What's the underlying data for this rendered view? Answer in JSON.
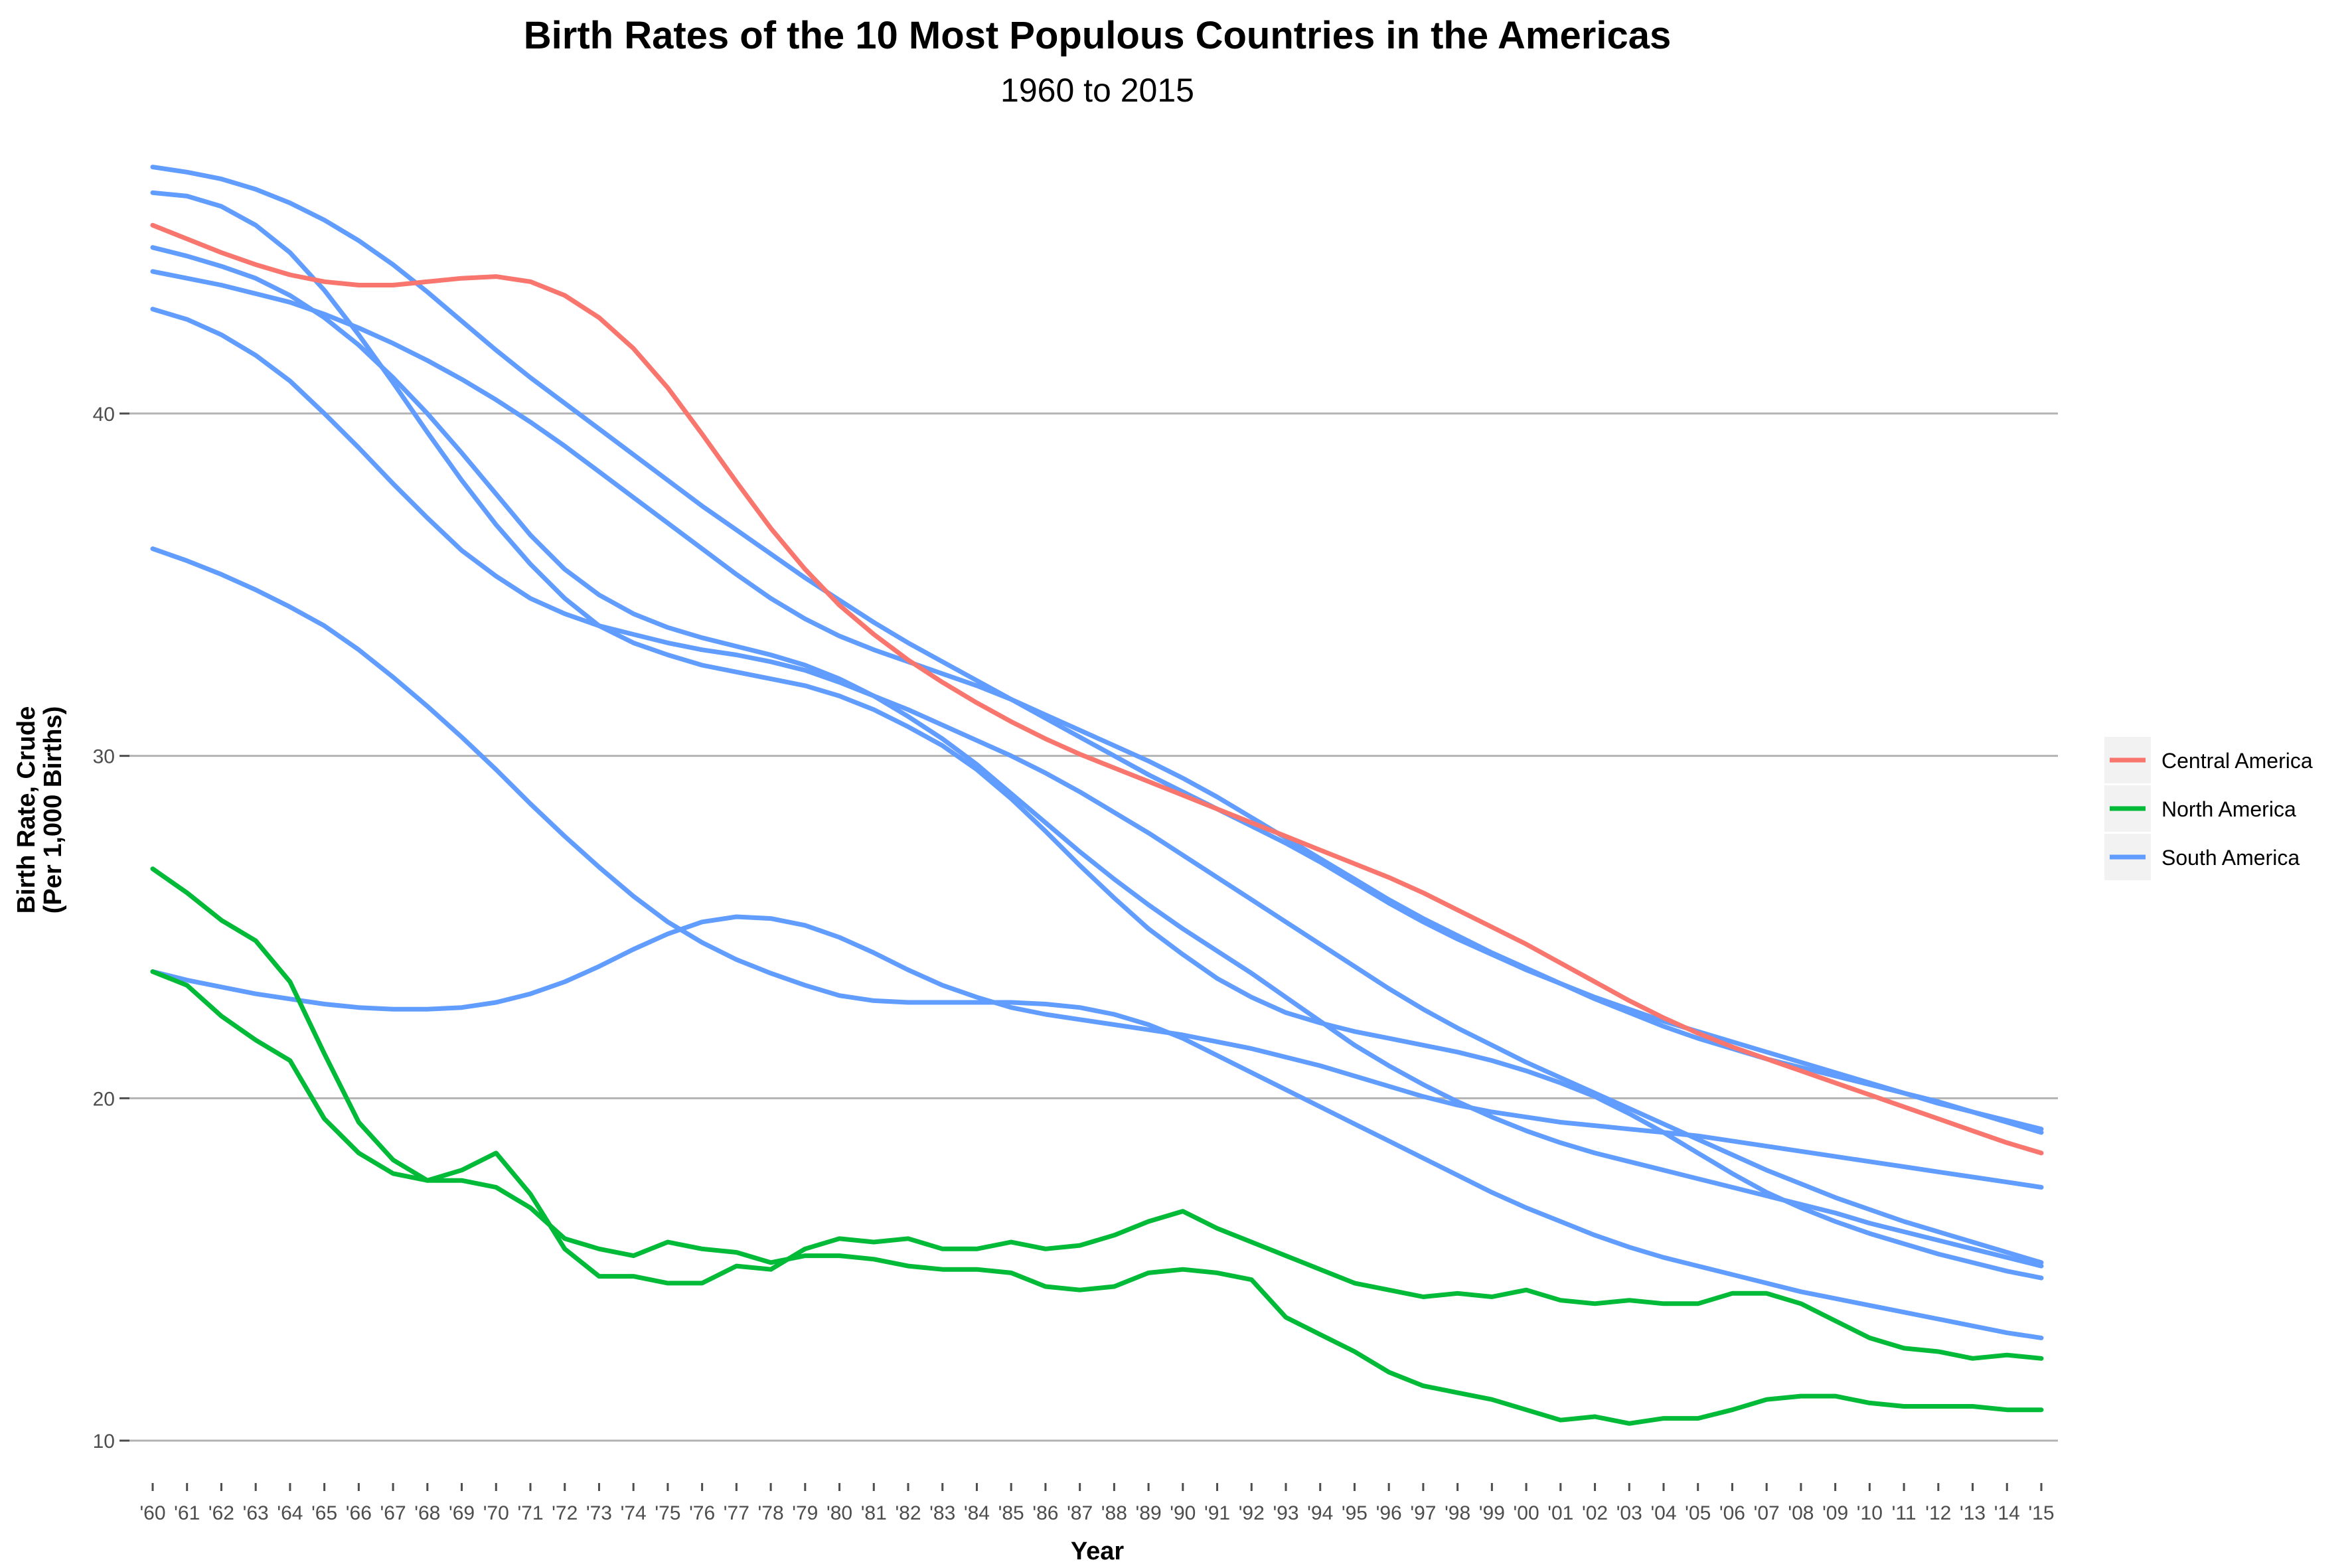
{
  "chart_data": {
    "type": "line",
    "title": "Birth Rates of the 10 Most Populous Countries in the Americas",
    "subtitle": "1960 to 2015",
    "xlabel": "Year",
    "ylabel": "Birth Rate, Crude",
    "ylabel2": "(Per 1,000 Births)",
    "xlim": [
      1960,
      2015
    ],
    "ylim": [
      8.8,
      48.2
    ],
    "y_ticks": [
      10,
      20,
      30,
      40
    ],
    "x_tick_labels": [
      "'60",
      "'61",
      "'62",
      "'63",
      "'64",
      "'65",
      "'66",
      "'67",
      "'68",
      "'69",
      "'70",
      "'71",
      "'72",
      "'73",
      "'74",
      "'75",
      "'76",
      "'77",
      "'78",
      "'79",
      "'80",
      "'81",
      "'82",
      "'83",
      "'84",
      "'85",
      "'86",
      "'87",
      "'88",
      "'89",
      "'90",
      "'91",
      "'92",
      "'93",
      "'94",
      "'95",
      "'96",
      "'97",
      "'98",
      "'99",
      "'00",
      "'01",
      "'02",
      "'03",
      "'04",
      "'05",
      "'06",
      "'07",
      "'08",
      "'09",
      "'10",
      "'11",
      "'12",
      "'13",
      "'14",
      "'15"
    ],
    "grid": "horizontal",
    "legend_position": "right",
    "legend": [
      {
        "label": "Central America",
        "color": "#F8766D"
      },
      {
        "label": "North America",
        "color": "#00BA38"
      },
      {
        "label": "South America",
        "color": "#619CFF"
      }
    ],
    "x": [
      1960,
      1961,
      1962,
      1963,
      1964,
      1965,
      1966,
      1967,
      1968,
      1969,
      1970,
      1971,
      1972,
      1973,
      1974,
      1975,
      1976,
      1977,
      1978,
      1979,
      1980,
      1981,
      1982,
      1983,
      1984,
      1985,
      1986,
      1987,
      1988,
      1989,
      1990,
      1991,
      1992,
      1993,
      1994,
      1995,
      1996,
      1997,
      1998,
      1999,
      2000,
      2001,
      2002,
      2003,
      2004,
      2005,
      2006,
      2007,
      2008,
      2009,
      2010,
      2011,
      2012,
      2013,
      2014,
      2015
    ],
    "series": [
      {
        "group": "South America",
        "values": [
          47.2,
          47.05,
          46.85,
          46.55,
          46.15,
          45.65,
          45.05,
          44.35,
          43.55,
          42.7,
          41.85,
          41.05,
          40.3,
          39.55,
          38.8,
          38.05,
          37.3,
          36.6,
          35.9,
          35.2,
          34.55,
          33.9,
          33.3,
          32.75,
          32.2,
          31.65,
          31.1,
          30.55,
          30.0,
          29.45,
          28.95,
          28.45,
          27.95,
          27.45,
          26.9,
          26.3,
          25.7,
          25.15,
          24.65,
          24.2,
          23.75,
          23.35,
          22.95,
          22.6,
          22.25,
          21.95,
          21.65,
          21.35,
          21.05,
          20.75,
          20.45,
          20.15,
          19.85,
          19.6,
          19.35,
          19.1
        ]
      },
      {
        "group": "South America",
        "values": [
          46.45,
          46.35,
          46.05,
          45.5,
          44.7,
          43.6,
          42.3,
          40.9,
          39.45,
          38.05,
          36.75,
          35.6,
          34.6,
          33.8,
          33.3,
          32.95,
          32.65,
          32.45,
          32.25,
          32.05,
          31.75,
          31.35,
          30.85,
          30.3,
          29.6,
          28.75,
          27.8,
          26.8,
          25.85,
          24.95,
          24.2,
          23.5,
          22.95,
          22.5,
          22.2,
          21.95,
          21.75,
          21.55,
          21.35,
          21.1,
          20.8,
          20.45,
          20.05,
          19.55,
          19.0,
          18.4,
          17.8,
          17.25,
          16.8,
          16.4,
          16.05,
          15.75,
          15.45,
          15.2,
          14.95,
          14.75
        ]
      },
      {
        "group": "South America",
        "values": [
          44.85,
          44.6,
          44.3,
          43.95,
          43.45,
          42.8,
          42.0,
          41.05,
          40.0,
          38.85,
          37.65,
          36.45,
          35.45,
          34.7,
          34.15,
          33.75,
          33.45,
          33.2,
          32.95,
          32.65,
          32.25,
          31.75,
          31.15,
          30.5,
          29.75,
          28.9,
          28.05,
          27.2,
          26.4,
          25.65,
          24.95,
          24.3,
          23.65,
          22.95,
          22.25,
          21.55,
          20.95,
          20.4,
          19.9,
          19.45,
          19.05,
          18.7,
          18.4,
          18.15,
          17.9,
          17.65,
          17.4,
          17.15,
          16.9,
          16.65,
          16.35,
          16.1,
          15.85,
          15.6,
          15.35,
          15.1
        ]
      },
      {
        "group": "South America",
        "values": [
          44.15,
          43.95,
          43.75,
          43.5,
          43.25,
          42.9,
          42.5,
          42.05,
          41.55,
          41.0,
          40.4,
          39.75,
          39.05,
          38.3,
          37.55,
          36.8,
          36.05,
          35.3,
          34.6,
          34.0,
          33.5,
          33.1,
          32.75,
          32.4,
          32.05,
          31.65,
          31.2,
          30.75,
          30.3,
          29.85,
          29.35,
          28.8,
          28.2,
          27.6,
          27.0,
          26.4,
          25.8,
          25.25,
          24.75,
          24.25,
          23.8,
          23.35,
          22.9,
          22.5,
          22.1,
          21.75,
          21.45,
          21.15,
          20.9,
          20.65,
          20.4,
          20.15,
          19.9,
          19.6,
          19.3,
          19.0
        ]
      },
      {
        "group": "South America",
        "values": [
          43.05,
          42.75,
          42.3,
          41.7,
          40.95,
          40.0,
          39.0,
          37.95,
          36.95,
          36.0,
          35.25,
          34.6,
          34.15,
          33.8,
          33.55,
          33.3,
          33.1,
          32.95,
          32.75,
          32.5,
          32.15,
          31.75,
          31.35,
          30.9,
          30.45,
          30.0,
          29.5,
          28.95,
          28.35,
          27.75,
          27.1,
          26.45,
          25.8,
          25.15,
          24.5,
          23.85,
          23.2,
          22.6,
          22.05,
          21.55,
          21.05,
          20.6,
          20.15,
          19.7,
          19.25,
          18.8,
          18.35,
          17.9,
          17.5,
          17.1,
          16.75,
          16.4,
          16.1,
          15.8,
          15.5,
          15.2
        ]
      },
      {
        "group": "South America",
        "values": [
          36.05,
          35.7,
          35.3,
          34.85,
          34.35,
          33.8,
          33.1,
          32.3,
          31.45,
          30.55,
          29.6,
          28.6,
          27.65,
          26.75,
          25.9,
          25.15,
          24.55,
          24.05,
          23.65,
          23.3,
          23.0,
          22.85,
          22.8,
          22.8,
          22.8,
          22.8,
          22.75,
          22.65,
          22.45,
          22.15,
          21.75,
          21.25,
          20.75,
          20.25,
          19.75,
          19.25,
          18.75,
          18.25,
          17.75,
          17.25,
          16.8,
          16.4,
          16.0,
          15.65,
          15.35,
          15.1,
          14.85,
          14.6,
          14.35,
          14.15,
          13.95,
          13.75,
          13.55,
          13.35,
          13.15,
          13.0
        ]
      },
      {
        "group": "South America",
        "values": [
          23.7,
          23.45,
          23.25,
          23.05,
          22.9,
          22.75,
          22.65,
          22.6,
          22.6,
          22.65,
          22.8,
          23.05,
          23.4,
          23.85,
          24.35,
          24.8,
          25.15,
          25.3,
          25.25,
          25.05,
          24.7,
          24.25,
          23.75,
          23.3,
          22.95,
          22.65,
          22.45,
          22.3,
          22.15,
          22.0,
          21.85,
          21.65,
          21.45,
          21.2,
          20.95,
          20.65,
          20.35,
          20.05,
          19.8,
          19.6,
          19.45,
          19.3,
          19.2,
          19.1,
          19.0,
          18.9,
          18.75,
          18.6,
          18.45,
          18.3,
          18.15,
          18.0,
          17.85,
          17.7,
          17.55,
          17.4
        ]
      },
      {
        "group": "Central America",
        "values": [
          45.5,
          45.1,
          44.7,
          44.35,
          44.05,
          43.85,
          43.75,
          43.75,
          43.85,
          43.95,
          44.0,
          43.85,
          43.45,
          42.8,
          41.9,
          40.75,
          39.4,
          38.0,
          36.65,
          35.45,
          34.4,
          33.55,
          32.8,
          32.15,
          31.55,
          31.0,
          30.5,
          30.05,
          29.65,
          29.25,
          28.85,
          28.45,
          28.05,
          27.65,
          27.25,
          26.85,
          26.45,
          26.0,
          25.5,
          25.0,
          24.5,
          23.95,
          23.4,
          22.85,
          22.35,
          21.9,
          21.5,
          21.15,
          20.8,
          20.45,
          20.1,
          19.75,
          19.4,
          19.05,
          18.7,
          18.4
        ]
      },
      {
        "group": "North America",
        "values": [
          26.7,
          26.0,
          25.2,
          24.6,
          23.4,
          21.3,
          19.3,
          18.2,
          17.6,
          17.9,
          18.4,
          17.2,
          15.6,
          14.8,
          14.8,
          14.6,
          14.6,
          15.1,
          15.0,
          15.6,
          15.9,
          15.8,
          15.9,
          15.6,
          15.6,
          15.8,
          15.6,
          15.7,
          16.0,
          16.4,
          16.7,
          16.2,
          15.8,
          15.4,
          15.0,
          14.6,
          14.4,
          14.2,
          14.3,
          14.2,
          14.4,
          14.1,
          14.0,
          14.1,
          14.0,
          14.0,
          14.3,
          14.3,
          14.0,
          13.5,
          13.0,
          12.7,
          12.6,
          12.4,
          12.5,
          12.4
        ]
      },
      {
        "group": "North America",
        "values": [
          23.7,
          23.3,
          22.4,
          21.7,
          21.1,
          19.4,
          18.4,
          17.8,
          17.6,
          17.6,
          17.4,
          16.8,
          15.9,
          15.6,
          15.4,
          15.8,
          15.6,
          15.5,
          15.2,
          15.4,
          15.4,
          15.3,
          15.1,
          15.0,
          15.0,
          14.9,
          14.5,
          14.4,
          14.5,
          14.9,
          15.0,
          14.9,
          14.7,
          13.6,
          13.1,
          12.6,
          12.0,
          11.6,
          11.4,
          11.2,
          10.9,
          10.6,
          10.7,
          10.5,
          10.65,
          10.65,
          10.9,
          11.2,
          11.3,
          11.3,
          11.1,
          11.0,
          11.0,
          11.0,
          10.9,
          10.9
        ]
      }
    ]
  }
}
